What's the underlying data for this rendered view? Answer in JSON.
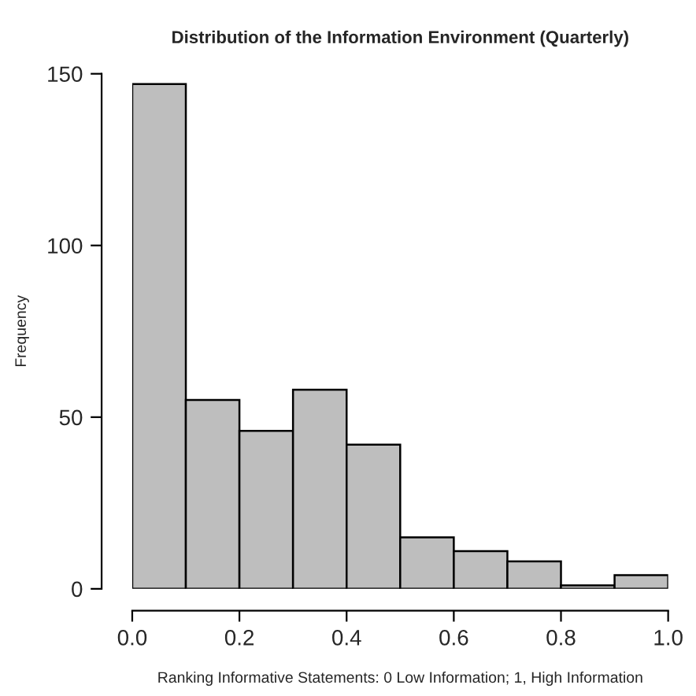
{
  "chart_data": {
    "type": "histogram",
    "title": "Distribution of the Information Environment (Quarterly)",
    "xlabel": "Ranking Informative Statements: 0 Low Information; 1, High Information",
    "ylabel": "Frequency",
    "bins": [
      0,
      0.1,
      0.2,
      0.3,
      0.4,
      0.5,
      0.6,
      0.7,
      0.8,
      0.9,
      1.0
    ],
    "values": [
      147,
      55,
      46,
      58,
      42,
      15,
      11,
      8,
      1,
      4
    ],
    "color": "#bebebe",
    "xlim": [
      0,
      1.0
    ],
    "xticks": [
      {
        "value": 0,
        "label": "0.0"
      },
      0.2,
      0.4,
      0.6,
      0.8,
      {
        "value": 1.0,
        "label": "1.0"
      }
    ],
    "ylim": [
      0,
      150
    ],
    "yticks": [
      0,
      50,
      100,
      150
    ],
    "grid": false,
    "legend": false
  }
}
